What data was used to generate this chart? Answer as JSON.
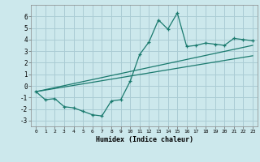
{
  "xlabel": "Humidex (Indice chaleur)",
  "bg_color": "#cce8ec",
  "grid_color": "#aaccd4",
  "line_color": "#1a7a6e",
  "xlim": [
    -0.5,
    23.5
  ],
  "ylim": [
    -3.5,
    7.0
  ],
  "xticks": [
    0,
    1,
    2,
    3,
    4,
    5,
    6,
    7,
    8,
    9,
    10,
    11,
    12,
    13,
    14,
    15,
    16,
    17,
    18,
    19,
    20,
    21,
    22,
    23
  ],
  "yticks": [
    -3,
    -2,
    -1,
    0,
    1,
    2,
    3,
    4,
    5,
    6
  ],
  "main_x": [
    0,
    1,
    2,
    3,
    4,
    5,
    6,
    7,
    8,
    9,
    10,
    11,
    12,
    13,
    14,
    15,
    16,
    17,
    18,
    19,
    20,
    21,
    22,
    23
  ],
  "main_y": [
    -0.5,
    -1.2,
    -1.1,
    -1.8,
    -1.9,
    -2.2,
    -2.5,
    -2.6,
    -1.3,
    -1.2,
    0.4,
    2.7,
    3.8,
    5.7,
    4.9,
    6.3,
    3.4,
    3.5,
    3.7,
    3.6,
    3.5,
    4.1,
    4.0,
    3.9
  ],
  "line2_x": [
    0,
    23
  ],
  "line2_y": [
    -0.5,
    2.6
  ],
  "line3_x": [
    0,
    23
  ],
  "line3_y": [
    -0.5,
    3.5
  ],
  "xlabel_fontsize": 6.0,
  "tick_fontsize_x": 4.5,
  "tick_fontsize_y": 5.5
}
